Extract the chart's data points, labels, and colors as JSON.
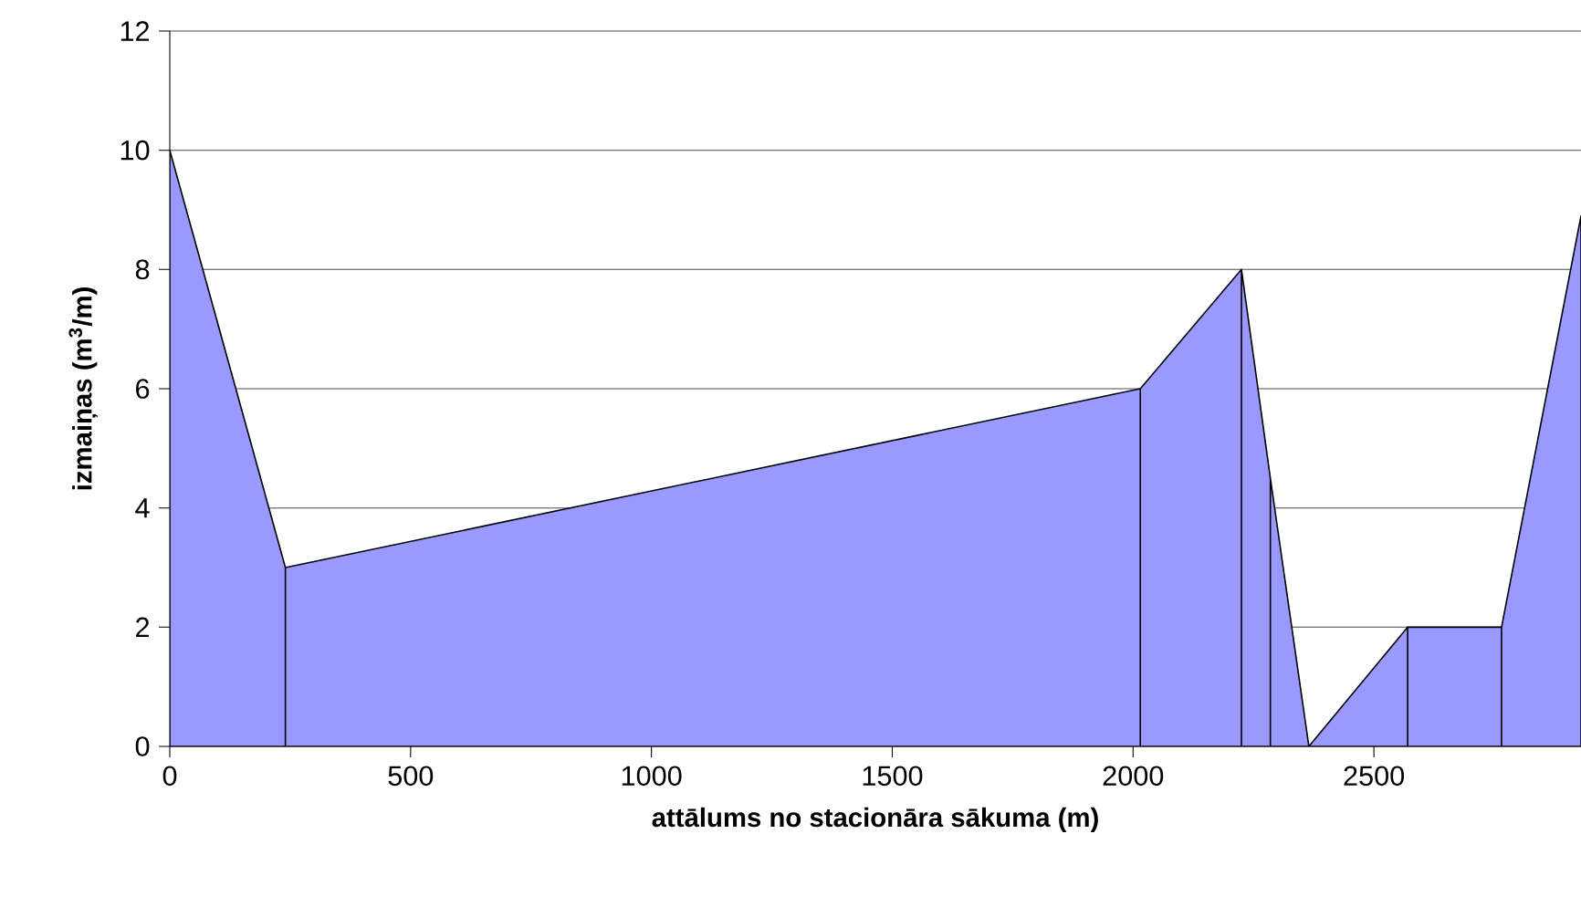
{
  "chart_data": {
    "type": "area",
    "xlabel": "attālums no stacionāra sākuma (m)",
    "ylabel": "izmaiņas (m$^{3}$/m)",
    "x": [
      0,
      240,
      2015,
      2225,
      2285,
      2365,
      2570,
      2765,
      2930
    ],
    "values": [
      10,
      3,
      6,
      8,
      4.5,
      0,
      2,
      2,
      8.9
    ],
    "color": "#9999ff",
    "xlim": [
      0,
      2930
    ],
    "xticks": [
      0,
      500,
      1000,
      1500,
      2000,
      2500
    ],
    "ylim": [
      0,
      12
    ],
    "yticks": [
      0,
      2,
      4,
      6,
      8,
      10,
      12
    ],
    "grid": "y"
  }
}
